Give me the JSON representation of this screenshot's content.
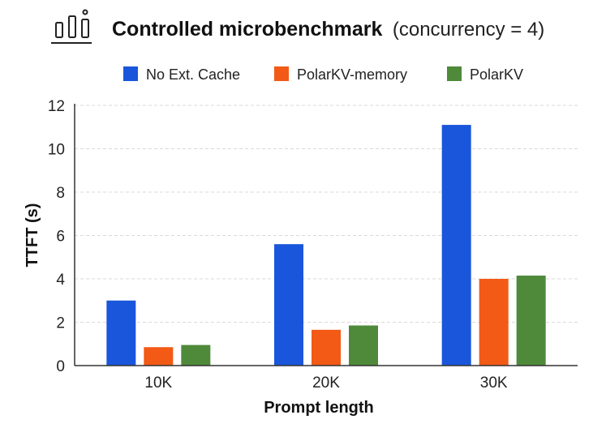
{
  "chart_data": {
    "type": "bar",
    "title": "Controlled microbenchmark",
    "subtitle": "(concurrency = 4)",
    "xlabel": "Prompt length",
    "ylabel": "TTFT (s)",
    "categories": [
      "10K",
      "20K",
      "30K"
    ],
    "ylim": [
      0,
      12
    ],
    "yticks": [
      0,
      2,
      4,
      6,
      8,
      10,
      12
    ],
    "grid": true,
    "legend_position": "top",
    "series": [
      {
        "name": "No Ext. Cache",
        "color": "#1a56db",
        "values": [
          3.0,
          5.6,
          11.1
        ]
      },
      {
        "name": "PolarKV-memory",
        "color": "#f25a16",
        "values": [
          0.85,
          1.65,
          4.0
        ]
      },
      {
        "name": "PolarKV",
        "color": "#4e8a3a",
        "values": [
          0.95,
          1.85,
          4.15
        ]
      }
    ]
  },
  "logo_icon": "benchmark-bars-icon"
}
